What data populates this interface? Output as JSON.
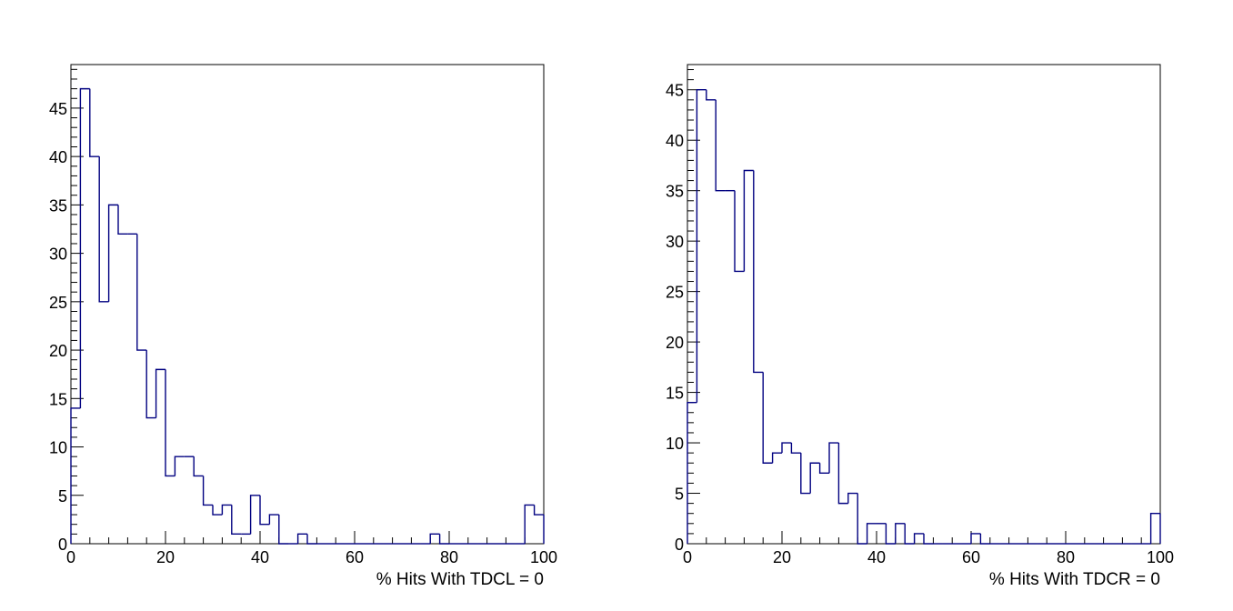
{
  "chart_data": [
    {
      "type": "bar",
      "histogram": true,
      "xlabel": "% Hits With TDCL = 0",
      "ylabel": "",
      "xlim": [
        0,
        100
      ],
      "ylim": [
        0,
        49.5
      ],
      "xticks": [
        0,
        20,
        40,
        60,
        80,
        100
      ],
      "yticks": [
        0,
        5,
        10,
        15,
        20,
        25,
        30,
        35,
        40,
        45
      ],
      "bin_width": 2,
      "line_color": "#000080",
      "values": [
        14,
        47,
        40,
        25,
        35,
        32,
        32,
        20,
        13,
        18,
        7,
        9,
        9,
        7,
        4,
        3,
        4,
        1,
        1,
        5,
        2,
        3,
        0,
        0,
        1,
        0,
        0,
        0,
        0,
        0,
        0,
        0,
        0,
        0,
        0,
        0,
        0,
        0,
        1,
        0,
        0,
        0,
        0,
        0,
        0,
        0,
        0,
        0,
        4,
        3
      ]
    },
    {
      "type": "bar",
      "histogram": true,
      "xlabel": "% Hits With TDCR = 0",
      "ylabel": "",
      "xlim": [
        0,
        100
      ],
      "ylim": [
        0,
        47.5
      ],
      "xticks": [
        0,
        20,
        40,
        60,
        80,
        100
      ],
      "yticks": [
        0,
        5,
        10,
        15,
        20,
        25,
        30,
        35,
        40,
        45
      ],
      "bin_width": 2,
      "line_color": "#000080",
      "values": [
        14,
        45,
        44,
        35,
        35,
        27,
        37,
        17,
        8,
        9,
        10,
        9,
        5,
        8,
        7,
        10,
        4,
        5,
        0,
        2,
        2,
        0,
        2,
        0,
        1,
        0,
        0,
        0,
        0,
        0,
        1,
        0,
        0,
        0,
        0,
        0,
        0,
        0,
        0,
        0,
        0,
        0,
        0,
        0,
        0,
        0,
        0,
        0,
        0,
        3
      ]
    }
  ]
}
